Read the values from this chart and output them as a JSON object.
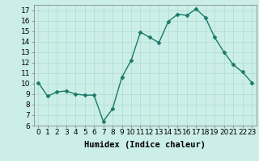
{
  "x": [
    0,
    1,
    2,
    3,
    4,
    5,
    6,
    7,
    8,
    9,
    10,
    11,
    12,
    13,
    14,
    15,
    16,
    17,
    18,
    19,
    20,
    21,
    22,
    23
  ],
  "y": [
    10.1,
    8.8,
    9.2,
    9.3,
    9.0,
    8.9,
    8.9,
    6.4,
    7.6,
    10.6,
    12.2,
    14.9,
    14.4,
    13.9,
    15.9,
    16.6,
    16.5,
    17.1,
    16.3,
    14.4,
    13.0,
    11.8,
    11.1,
    10.1
  ],
  "line_color": "#1a7a6a",
  "marker": "D",
  "markersize": 2.5,
  "linewidth": 1.0,
  "bg_color": "#cceee8",
  "grid_color": "#aaddcc",
  "xlabel": "Humidex (Indice chaleur)",
  "ylim": [
    6,
    17.5
  ],
  "xlim": [
    -0.5,
    23.5
  ],
  "yticks": [
    6,
    7,
    8,
    9,
    10,
    11,
    12,
    13,
    14,
    15,
    16,
    17
  ],
  "xticks": [
    0,
    1,
    2,
    3,
    4,
    5,
    6,
    7,
    8,
    9,
    10,
    11,
    12,
    13,
    14,
    15,
    16,
    17,
    18,
    19,
    20,
    21,
    22,
    23
  ],
  "xtick_labels": [
    "0",
    "1",
    "2",
    "3",
    "4",
    "5",
    "6",
    "7",
    "8",
    "9",
    "10",
    "11",
    "12",
    "13",
    "14",
    "15",
    "16",
    "17",
    "18",
    "19",
    "20",
    "21",
    "22",
    "23"
  ],
  "tick_fontsize": 6.5,
  "xlabel_fontsize": 7.5
}
